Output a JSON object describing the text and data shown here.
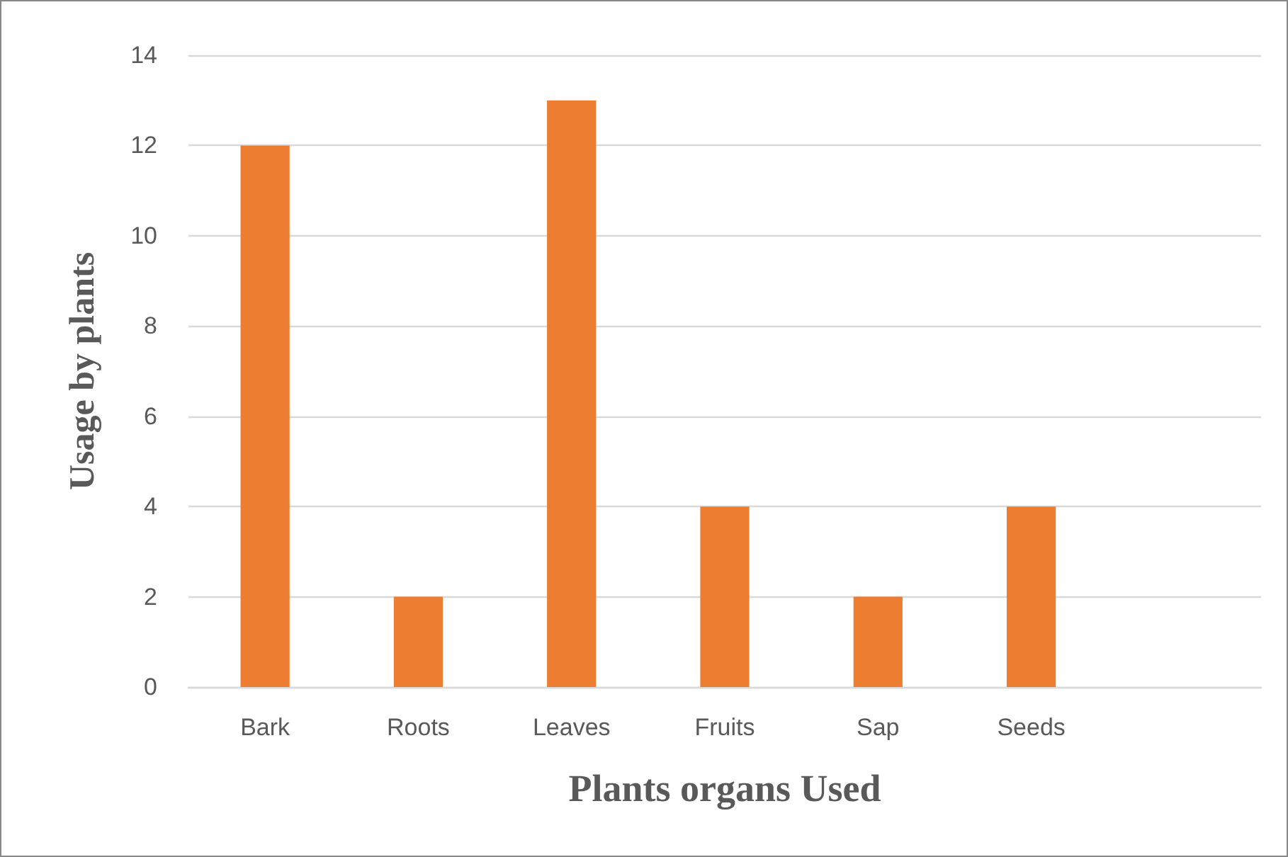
{
  "chart_data": {
    "type": "bar",
    "xlabel": "Plants organs Used",
    "ylabel": "Usage by plants",
    "categories": [
      "Bark",
      "Roots",
      "Leaves",
      "Fruits",
      "Sap",
      "Seeds",
      null
    ],
    "values": [
      12,
      2,
      13,
      4,
      2,
      4,
      null
    ],
    "color": "#ed7d31",
    "ylim": [
      0,
      14
    ],
    "yticks": [
      0,
      2,
      4,
      6,
      8,
      10,
      12,
      14
    ],
    "grid": "y"
  }
}
